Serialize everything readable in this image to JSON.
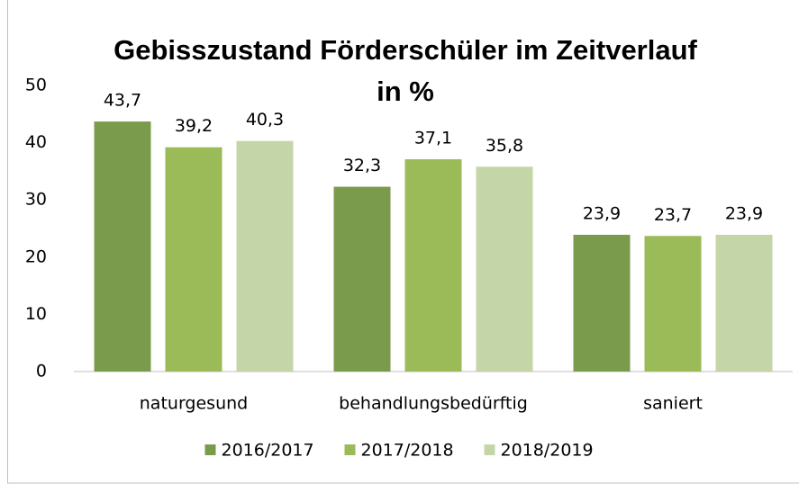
{
  "chart_data": {
    "type": "bar",
    "title": [
      "Gebisszustand Förderschüler im Zeitverlauf",
      "in %"
    ],
    "categories": [
      "naturgesund",
      "behandlungsbedürftig",
      "saniert"
    ],
    "series": [
      {
        "name": "2016/2017",
        "color": "#7b9b4c",
        "values": [
          43.7,
          32.3,
          23.9
        ],
        "value_labels": [
          "43,7",
          "32,3",
          "23,9"
        ]
      },
      {
        "name": "2017/2018",
        "color": "#9bbb59",
        "values": [
          39.2,
          37.1,
          23.7
        ],
        "value_labels": [
          "39,2",
          "37,1",
          "23,7"
        ]
      },
      {
        "name": "2018/2019",
        "color": "#c4d6a8",
        "values": [
          40.3,
          35.8,
          23.9
        ],
        "value_labels": [
          "40,3",
          "35,8",
          "23,9"
        ]
      }
    ],
    "ylim": [
      0,
      50
    ],
    "yticks": [
      0,
      10,
      20,
      30,
      40,
      50
    ],
    "grid": false,
    "legend": "bottom"
  }
}
